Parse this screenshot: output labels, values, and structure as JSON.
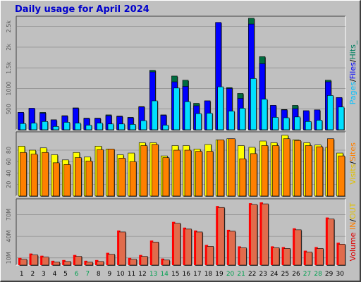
{
  "title": "Daily usage for April 2024",
  "colors": {
    "background": "#c0c0c0",
    "plot": "#c0c0c0",
    "title": "#0000cc",
    "hits": "#006c40",
    "files": "#0000ff",
    "pages": "#00e0ff",
    "visits": "#ffff00",
    "sites": "#ff8000",
    "kbin": "#ff8000",
    "kbout": "#ffff00",
    "volume": "#ff0000",
    "volume_bar": "#e06c4c",
    "weekday": "#000000",
    "weekend": "#00a050"
  },
  "legends": {
    "panel1": [
      {
        "text": "Pages",
        "color": "#00c0ff"
      },
      {
        "text": "/",
        "color": "#000000"
      },
      {
        "text": "Files",
        "color": "#0000ff"
      },
      {
        "text": "/",
        "color": "#000000"
      },
      {
        "text": "Hits_",
        "color": "#008060"
      }
    ],
    "panel2": [
      {
        "text": "Visits",
        "color": "#e0c000"
      },
      {
        "text": "/",
        "color": "#000000"
      },
      {
        "text": "Sites",
        "color": "#ff8000"
      }
    ],
    "panel3": [
      {
        "text": "Volume",
        "color": "#dd0000"
      },
      {
        "text": "IN",
        "color": "#ff8000"
      },
      {
        "text": "/",
        "color": "#000000"
      },
      {
        "text": "OUT",
        "color": "#e0c000"
      }
    ]
  },
  "chart_data": [
    {
      "type": "bar",
      "panel": "hits-files-pages",
      "x": [
        1,
        2,
        3,
        4,
        5,
        6,
        7,
        8,
        9,
        10,
        11,
        12,
        13,
        14,
        15,
        16,
        17,
        18,
        19,
        20,
        21,
        22,
        23,
        24,
        25,
        26,
        27,
        28,
        29,
        30
      ],
      "weekend_days": [
        6,
        7,
        13,
        14,
        20,
        21,
        27,
        28
      ],
      "ylim": [
        0,
        2750
      ],
      "yticks": [
        "500",
        "1000",
        "1.5k",
        "2k",
        "2.5k"
      ],
      "ytick_values": [
        500,
        1000,
        1500,
        2000,
        2500
      ],
      "series": [
        {
          "name": "Hits",
          "values": [
            420,
            520,
            420,
            240,
            340,
            530,
            280,
            280,
            360,
            330,
            300,
            560,
            1440,
            360,
            1300,
            1200,
            640,
            700,
            2600,
            1020,
            880,
            2700,
            1770,
            590,
            490,
            590,
            460,
            480,
            1200,
            780
          ]
        },
        {
          "name": "Files",
          "values": [
            420,
            520,
            400,
            240,
            330,
            520,
            270,
            270,
            340,
            320,
            290,
            550,
            1400,
            350,
            1160,
            1050,
            580,
            700,
            2600,
            1000,
            760,
            2560,
            1600,
            590,
            480,
            510,
            460,
            480,
            1160,
            780
          ]
        },
        {
          "name": "Pages",
          "values": [
            150,
            160,
            200,
            80,
            180,
            160,
            110,
            160,
            140,
            140,
            130,
            220,
            700,
            110,
            1010,
            680,
            390,
            400,
            1040,
            450,
            520,
            1240,
            740,
            300,
            290,
            310,
            200,
            230,
            830,
            550
          ]
        }
      ]
    },
    {
      "type": "bar",
      "panel": "visits-sites",
      "x": [
        1,
        2,
        3,
        4,
        5,
        6,
        7,
        8,
        9,
        10,
        11,
        12,
        13,
        14,
        15,
        16,
        17,
        18,
        19,
        20,
        21,
        22,
        23,
        24,
        25,
        26,
        27,
        28,
        29,
        30
      ],
      "ylim": [
        0,
        112
      ],
      "yticks": [
        "20",
        "40",
        "60",
        "80"
      ],
      "ytick_values": [
        20,
        40,
        60,
        80
      ],
      "series": [
        {
          "name": "Visits",
          "values": [
            87,
            80,
            84,
            72,
            63,
            76,
            68,
            87,
            82,
            72,
            75,
            93,
            93,
            70,
            88,
            88,
            82,
            90,
            98,
            100,
            88,
            85,
            96,
            93,
            106,
            98,
            93,
            89,
            85,
            75
          ]
        },
        {
          "name": "Sites",
          "values": [
            76,
            73,
            76,
            58,
            55,
            67,
            61,
            81,
            82,
            66,
            60,
            88,
            90,
            67,
            80,
            80,
            78,
            78,
            98,
            100,
            65,
            74,
            88,
            88,
            100,
            97,
            88,
            86,
            100,
            70
          ]
        }
      ]
    },
    {
      "type": "bar",
      "panel": "volume",
      "x": [
        1,
        2,
        3,
        4,
        5,
        6,
        7,
        8,
        9,
        10,
        11,
        12,
        13,
        14,
        15,
        16,
        17,
        18,
        19,
        20,
        21,
        22,
        23,
        24,
        25,
        26,
        27,
        28,
        29,
        30
      ],
      "ylim": [
        0,
        92
      ],
      "yticks": [
        "10M",
        "40M",
        "70M"
      ],
      "ytick_values": [
        10,
        40,
        70
      ],
      "series": [
        {
          "name": "Volume",
          "values": [
            10,
            16,
            13,
            6,
            7,
            14,
            6,
            7,
            17,
            48,
            10,
            14,
            34,
            9,
            60,
            52,
            48,
            28,
            82,
            49,
            26,
            86,
            87,
            26,
            25,
            51,
            20,
            25,
            66,
            31
          ]
        }
      ]
    }
  ]
}
